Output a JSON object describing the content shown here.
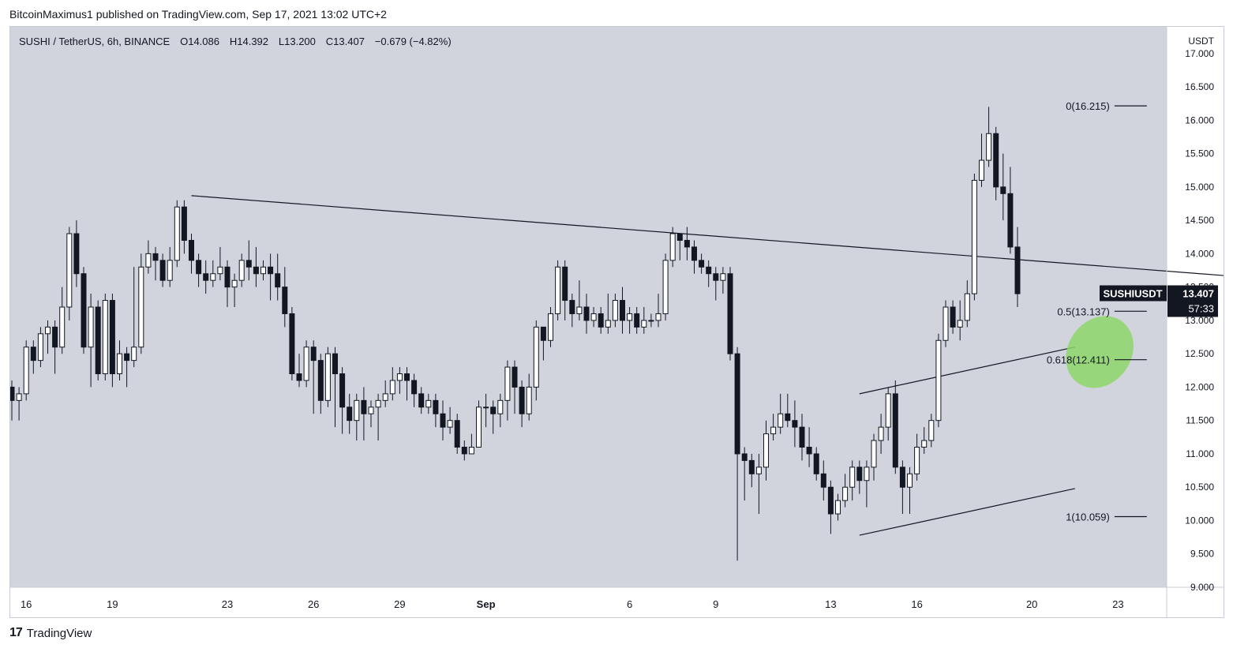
{
  "header": {
    "credit": "BitcoinMaximus1 published on TradingView.com, Sep 17, 2021 13:02 UTC+2"
  },
  "legend": {
    "symbol": "SUSHI / TetherUS, 6h, BINANCE",
    "open_key": "O",
    "open": "14.086",
    "high_key": "H",
    "high": "14.392",
    "low_key": "L",
    "low": "13.200",
    "close_key": "C",
    "close": "13.407",
    "change": "−0.679 (−4.82%)"
  },
  "footer": {
    "logo": "17",
    "brand": "TradingView"
  },
  "colors": {
    "plot_bg": "#d1d4dc",
    "up_body": "#ffffff",
    "down_body": "#131722",
    "line": "#131722",
    "green_zone": "#8ed66a",
    "price_tag_bg": "#131722"
  },
  "chart_data": {
    "type": "candlestick",
    "currency_label": "USDT",
    "ylim": [
      9.0,
      17.4
    ],
    "y_ticks": [
      "17.000",
      "16.500",
      "16.000",
      "15.500",
      "15.000",
      "14.500",
      "14.000",
      "13.500",
      "13.000",
      "12.500",
      "12.000",
      "11.500",
      "11.000",
      "10.500",
      "10.000",
      "9.500",
      "9.000"
    ],
    "x_tick_labels": [
      {
        "label": "16",
        "i": 2
      },
      {
        "label": "19",
        "i": 14
      },
      {
        "label": "23",
        "i": 30
      },
      {
        "label": "26",
        "i": 42
      },
      {
        "label": "29",
        "i": 54
      },
      {
        "label": "Sep",
        "i": 66
      },
      {
        "label": "6",
        "i": 86
      },
      {
        "label": "9",
        "i": 98
      },
      {
        "label": "13",
        "i": 114
      },
      {
        "label": "16",
        "i": 126
      },
      {
        "label": "20",
        "i": 142
      },
      {
        "label": "23",
        "i": 154
      }
    ],
    "candles": [
      [
        12.0,
        11.8,
        12.1,
        11.5
      ],
      [
        11.8,
        11.9,
        12.0,
        11.5
      ],
      [
        11.9,
        12.6,
        12.7,
        11.8
      ],
      [
        12.6,
        12.4,
        12.7,
        12.2
      ],
      [
        12.4,
        12.8,
        12.9,
        12.3
      ],
      [
        12.8,
        12.9,
        13.0,
        12.5
      ],
      [
        12.9,
        12.6,
        13.0,
        12.2
      ],
      [
        12.6,
        13.2,
        13.5,
        12.5
      ],
      [
        13.2,
        14.3,
        14.4,
        13.0
      ],
      [
        14.3,
        13.7,
        14.5,
        13.5
      ],
      [
        13.7,
        12.6,
        13.8,
        12.5
      ],
      [
        12.6,
        13.2,
        13.4,
        12.0
      ],
      [
        13.2,
        12.2,
        13.3,
        12.1
      ],
      [
        12.2,
        13.3,
        13.4,
        12.1
      ],
      [
        13.3,
        12.2,
        13.4,
        12.0
      ],
      [
        12.2,
        12.5,
        12.7,
        12.1
      ],
      [
        12.5,
        12.4,
        12.6,
        12.0
      ],
      [
        12.4,
        12.6,
        13.8,
        12.3
      ],
      [
        12.6,
        13.8,
        14.0,
        12.5
      ],
      [
        13.8,
        14.0,
        14.2,
        13.7
      ],
      [
        14.0,
        13.9,
        14.1,
        13.6
      ],
      [
        13.9,
        13.6,
        14.0,
        13.5
      ],
      [
        13.6,
        13.9,
        14.1,
        13.5
      ],
      [
        13.9,
        14.7,
        14.8,
        13.8
      ],
      [
        14.7,
        14.2,
        14.8,
        14.0
      ],
      [
        14.2,
        13.9,
        14.3,
        13.7
      ],
      [
        13.9,
        13.7,
        14.0,
        13.5
      ],
      [
        13.7,
        13.6,
        13.9,
        13.4
      ],
      [
        13.6,
        13.7,
        13.9,
        13.5
      ],
      [
        13.7,
        13.8,
        14.1,
        13.6
      ],
      [
        13.8,
        13.5,
        13.9,
        13.2
      ],
      [
        13.5,
        13.6,
        13.7,
        13.2
      ],
      [
        13.6,
        13.9,
        14.0,
        13.5
      ],
      [
        13.9,
        13.8,
        14.2,
        13.6
      ],
      [
        13.8,
        13.7,
        14.1,
        13.5
      ],
      [
        13.7,
        13.8,
        13.9,
        13.6
      ],
      [
        13.8,
        13.7,
        14.0,
        13.3
      ],
      [
        13.7,
        13.5,
        14.0,
        13.3
      ],
      [
        13.5,
        13.1,
        13.8,
        12.9
      ],
      [
        13.1,
        12.2,
        13.2,
        12.1
      ],
      [
        12.2,
        12.1,
        12.5,
        12.0
      ],
      [
        12.1,
        12.6,
        12.7,
        12.0
      ],
      [
        12.6,
        12.4,
        12.7,
        11.6
      ],
      [
        12.4,
        11.8,
        12.5,
        11.6
      ],
      [
        11.8,
        12.5,
        12.6,
        11.7
      ],
      [
        12.5,
        12.2,
        12.6,
        11.4
      ],
      [
        12.2,
        11.7,
        12.3,
        11.3
      ],
      [
        11.7,
        11.5,
        11.9,
        11.3
      ],
      [
        11.5,
        11.8,
        11.9,
        11.2
      ],
      [
        11.8,
        11.6,
        12.0,
        11.2
      ],
      [
        11.6,
        11.7,
        11.8,
        11.4
      ],
      [
        11.7,
        11.8,
        11.9,
        11.2
      ],
      [
        11.8,
        11.9,
        12.1,
        11.7
      ],
      [
        11.9,
        12.1,
        12.3,
        11.8
      ],
      [
        12.1,
        12.2,
        12.3,
        11.9
      ],
      [
        12.2,
        12.1,
        12.3,
        11.8
      ],
      [
        12.1,
        11.9,
        12.2,
        11.7
      ],
      [
        11.9,
        11.7,
        12.0,
        11.6
      ],
      [
        11.7,
        11.8,
        11.9,
        11.6
      ],
      [
        11.8,
        11.6,
        11.9,
        11.4
      ],
      [
        11.6,
        11.4,
        11.8,
        11.2
      ],
      [
        11.4,
        11.5,
        11.7,
        11.3
      ],
      [
        11.5,
        11.1,
        11.6,
        11.0
      ],
      [
        11.1,
        11.0,
        11.2,
        10.9
      ],
      [
        11.0,
        11.1,
        11.3,
        11.0
      ],
      [
        11.1,
        11.7,
        11.8,
        11.1
      ],
      [
        11.7,
        11.7,
        11.9,
        11.4
      ],
      [
        11.7,
        11.6,
        11.8,
        11.3
      ],
      [
        11.6,
        11.8,
        11.9,
        11.4
      ],
      [
        11.8,
        12.3,
        12.4,
        11.5
      ],
      [
        12.3,
        12.0,
        12.4,
        11.6
      ],
      [
        12.0,
        11.6,
        12.1,
        11.4
      ],
      [
        11.6,
        12.0,
        12.2,
        11.5
      ],
      [
        12.0,
        12.9,
        13.0,
        11.8
      ],
      [
        12.9,
        12.7,
        12.9,
        12.4
      ],
      [
        12.7,
        13.1,
        13.2,
        12.6
      ],
      [
        13.1,
        13.8,
        13.9,
        13.0
      ],
      [
        13.8,
        13.3,
        13.9,
        13.0
      ],
      [
        13.3,
        13.1,
        13.4,
        12.9
      ],
      [
        13.1,
        13.2,
        13.6,
        13.0
      ],
      [
        13.2,
        13.0,
        13.4,
        12.8
      ],
      [
        13.0,
        13.1,
        13.2,
        12.9
      ],
      [
        13.1,
        12.9,
        13.2,
        12.8
      ],
      [
        12.9,
        13.0,
        13.4,
        12.8
      ],
      [
        13.0,
        13.3,
        13.4,
        12.9
      ],
      [
        13.3,
        13.0,
        13.5,
        12.8
      ],
      [
        13.0,
        13.1,
        13.2,
        12.8
      ],
      [
        13.1,
        12.9,
        13.2,
        12.8
      ],
      [
        12.9,
        13.0,
        13.2,
        12.8
      ],
      [
        13.0,
        13.0,
        13.1,
        12.9
      ],
      [
        13.0,
        13.1,
        13.4,
        12.9
      ],
      [
        13.1,
        13.9,
        14.0,
        13.0
      ],
      [
        13.9,
        14.3,
        14.4,
        13.8
      ],
      [
        14.3,
        14.2,
        14.3,
        13.9
      ],
      [
        14.2,
        14.1,
        14.4,
        13.9
      ],
      [
        14.1,
        13.9,
        14.2,
        13.7
      ],
      [
        13.9,
        13.8,
        14.0,
        13.7
      ],
      [
        13.8,
        13.7,
        13.9,
        13.5
      ],
      [
        13.7,
        13.6,
        13.8,
        13.3
      ],
      [
        13.6,
        13.7,
        13.8,
        13.4
      ],
      [
        13.7,
        12.5,
        13.8,
        12.4
      ],
      [
        12.5,
        11.0,
        12.6,
        9.4
      ],
      [
        11.0,
        10.9,
        11.1,
        10.3
      ],
      [
        10.9,
        10.7,
        11.0,
        10.5
      ],
      [
        10.7,
        10.8,
        11.0,
        10.1
      ],
      [
        10.8,
        11.3,
        11.5,
        10.6
      ],
      [
        11.3,
        11.4,
        11.6,
        11.2
      ],
      [
        11.4,
        11.6,
        11.9,
        11.3
      ],
      [
        11.6,
        11.5,
        11.9,
        11.4
      ],
      [
        11.5,
        11.4,
        11.8,
        11.1
      ],
      [
        11.4,
        11.1,
        11.6,
        10.9
      ],
      [
        11.1,
        11.0,
        11.4,
        10.8
      ],
      [
        11.0,
        10.7,
        11.1,
        10.6
      ],
      [
        10.7,
        10.5,
        10.9,
        10.3
      ],
      [
        10.5,
        10.1,
        10.6,
        9.8
      ],
      [
        10.1,
        10.3,
        10.4,
        10.0
      ],
      [
        10.3,
        10.5,
        10.7,
        10.2
      ],
      [
        10.5,
        10.8,
        10.9,
        10.3
      ],
      [
        10.8,
        10.6,
        10.9,
        10.4
      ],
      [
        10.6,
        10.8,
        10.9,
        10.2
      ],
      [
        10.8,
        11.2,
        11.3,
        10.6
      ],
      [
        11.2,
        11.4,
        11.6,
        11.0
      ],
      [
        11.4,
        11.9,
        12.0,
        11.2
      ],
      [
        11.9,
        10.8,
        12.1,
        10.7
      ],
      [
        10.8,
        10.5,
        10.9,
        10.1
      ],
      [
        10.5,
        10.7,
        10.8,
        10.1
      ],
      [
        10.7,
        11.1,
        11.3,
        10.6
      ],
      [
        11.1,
        11.2,
        11.4,
        11.0
      ],
      [
        11.2,
        11.5,
        11.6,
        11.1
      ],
      [
        11.5,
        12.7,
        12.8,
        11.4
      ],
      [
        12.7,
        13.2,
        13.3,
        12.6
      ],
      [
        13.2,
        12.9,
        13.3,
        12.8
      ],
      [
        12.9,
        13.0,
        13.3,
        12.7
      ],
      [
        13.0,
        13.4,
        13.6,
        12.9
      ],
      [
        13.4,
        15.1,
        15.2,
        13.3
      ],
      [
        15.1,
        15.4,
        15.8,
        15.0
      ],
      [
        15.4,
        15.8,
        16.2,
        15.3
      ],
      [
        15.8,
        15.0,
        15.9,
        14.8
      ],
      [
        15.0,
        14.9,
        15.5,
        14.5
      ],
      [
        14.9,
        14.1,
        15.3,
        14.0
      ],
      [
        14.1,
        13.4,
        14.4,
        13.2
      ]
    ],
    "trendlines": [
      {
        "name": "descending-resistance",
        "from": {
          "i": 25,
          "y": 14.87
        },
        "to": {
          "i": 169,
          "y": 13.67
        }
      },
      {
        "name": "channel-upper",
        "from": {
          "i": 118,
          "y": 11.9
        },
        "to": {
          "i": 148,
          "y": 12.6
        }
      },
      {
        "name": "channel-lower",
        "from": {
          "i": 118,
          "y": 9.78
        },
        "to": {
          "i": 148,
          "y": 10.48
        }
      }
    ],
    "fib_levels": [
      {
        "label": "0(16.215)",
        "value": 16.215
      },
      {
        "label": "0.5(13.137)",
        "value": 13.137
      },
      {
        "label": "0.618(12.411)",
        "value": 12.411
      },
      {
        "label": "1(10.059)",
        "value": 10.059
      }
    ],
    "price_tag": {
      "symbol": "SUSHIUSDT",
      "price": "13.407",
      "countdown": "57:33",
      "value": 13.407
    },
    "support_zone": {
      "center_y": 12.55,
      "center_i": 151
    }
  }
}
